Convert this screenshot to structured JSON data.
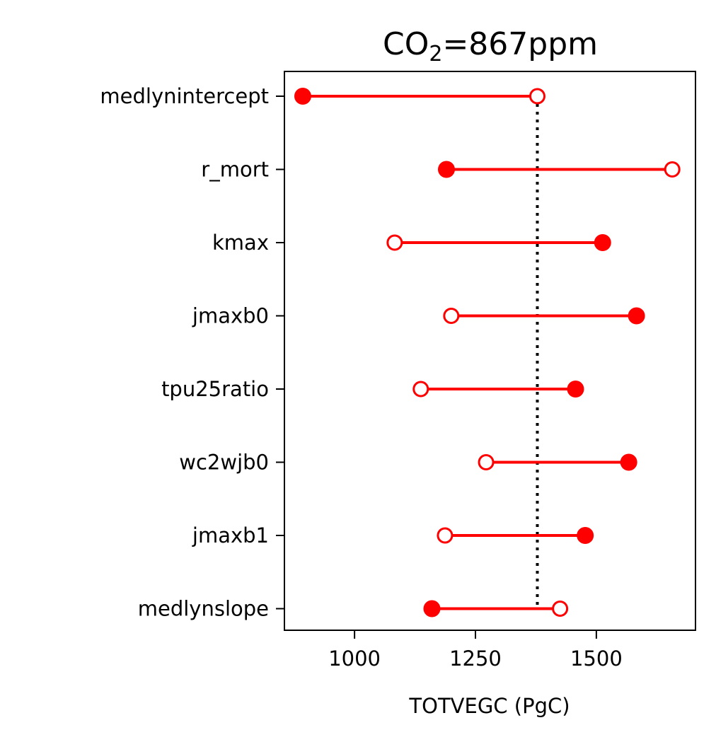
{
  "chart_data": {
    "type": "dumbbell",
    "title_main": "CO",
    "title_sub": "2",
    "title_rest": "=867ppm",
    "xlabel": "TOTVEGC (PgC)",
    "xlim": [
      855,
      1705
    ],
    "xticks": [
      1000,
      1250,
      1500
    ],
    "reference_value": 1378,
    "categories": [
      "medlynintercept",
      "r_mort",
      "kmax",
      "jmaxb0",
      "tpu25ratio",
      "wc2wjb0",
      "jmaxb1",
      "medlynslope"
    ],
    "filled_values": [
      893,
      1190,
      1513,
      1583,
      1457,
      1567,
      1477,
      1160
    ],
    "open_values": [
      1378,
      1657,
      1083,
      1200,
      1137,
      1272,
      1187,
      1425
    ],
    "colors": {
      "series": "#ff0000",
      "reference": "#000000"
    }
  }
}
